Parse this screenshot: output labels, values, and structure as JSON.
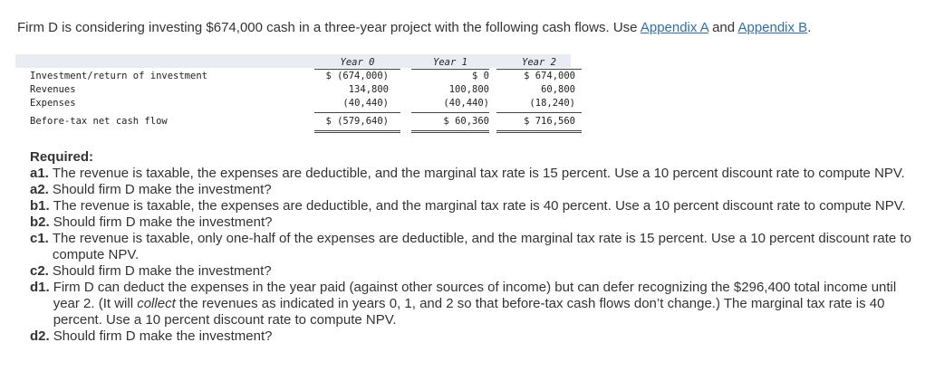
{
  "intro": {
    "text": "Firm D is considering investing $674,000 cash in a three-year project with the following cash flows. Use ",
    "link_a": "Appendix A",
    "and": " and ",
    "link_b": "Appendix B",
    "end": "."
  },
  "table": {
    "headers": [
      "Year 0",
      "Year 1",
      "Year 2"
    ],
    "rows": [
      {
        "label": "Investment/return of investment",
        "values": [
          "$ (674,000)",
          "$ 0",
          "$ 674,000"
        ]
      },
      {
        "label": "Revenues",
        "values": [
          "134,800",
          "100,800",
          "60,800"
        ]
      },
      {
        "label": "Expenses",
        "values": [
          "(40,440)",
          "(40,440)",
          "(18,240)"
        ]
      },
      {
        "label": "Before-tax net cash flow",
        "values": [
          "$ (579,640)",
          "$ 60,360",
          "$ 716,560"
        ]
      }
    ]
  },
  "required": {
    "title": "Required:",
    "items": [
      {
        "key": "a1.",
        "text": "The revenue is taxable, the expenses are deductible, and the marginal tax rate is 15 percent. Use a 10 percent discount rate to compute NPV."
      },
      {
        "key": "a2.",
        "text": "Should firm D make the investment?"
      },
      {
        "key": "b1.",
        "text": "The revenue is taxable, the expenses are deductible, and the marginal tax rate is 40 percent. Use a 10 percent discount rate to compute NPV."
      },
      {
        "key": "b2.",
        "text": "Should firm D make the investment?"
      },
      {
        "key": "c1.",
        "text": "The revenue is taxable, only one-half of the expenses are deductible, and the marginal tax rate is 15 percent. Use a 10 percent discount rate to compute NPV."
      },
      {
        "key": "c2.",
        "text": "Should firm D make the investment?"
      },
      {
        "key": "d1.",
        "text_before": "Firm D can deduct the expenses in the year paid (against other sources of income) but can defer recognizing the $296,400 total income until year 2. (It will ",
        "text_em": "collect",
        "text_after": " the revenues as indicated in years 0, 1, and 2 so that before-tax cash flows don’t change.) The marginal tax rate is 40 percent. Use a 10 percent discount rate to compute NPV."
      },
      {
        "key": "d2.",
        "text": "Should firm D make the investment?"
      }
    ]
  }
}
